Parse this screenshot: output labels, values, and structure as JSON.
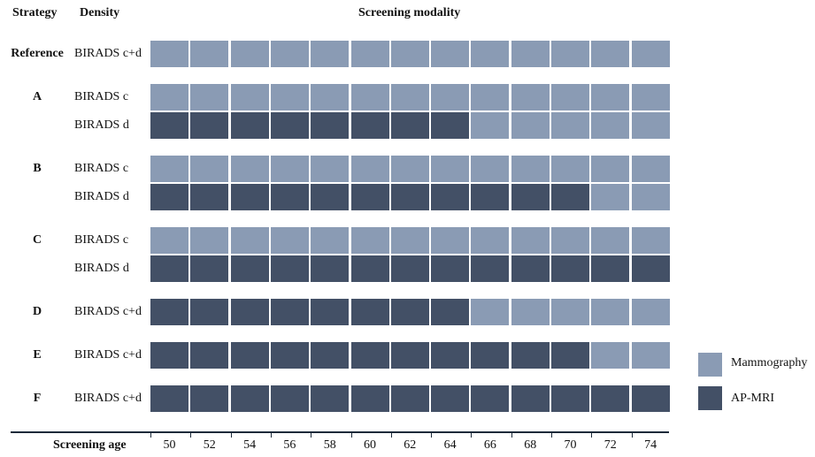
{
  "header": {
    "strategy": "Strategy",
    "density": "Density",
    "modality": "Screening modality"
  },
  "colors": {
    "mammography": "#8a9bb4",
    "ap_mri": "#435066",
    "axis": "#1b2a3a"
  },
  "ages": [
    "50",
    "52",
    "54",
    "56",
    "58",
    "60",
    "62",
    "64",
    "66",
    "68",
    "70",
    "72",
    "74"
  ],
  "rows": [
    {
      "strategy": "Reference",
      "density": "BIRADS c+d",
      "mri_count": 0
    },
    {
      "strategy": "A",
      "density": "BIRADS c",
      "mri_count": 0
    },
    {
      "strategy": "",
      "density": "BIRADS d",
      "mri_count": 8
    },
    {
      "strategy": "B",
      "density": "BIRADS c",
      "mri_count": 0
    },
    {
      "strategy": "",
      "density": "BIRADS d",
      "mri_count": 11
    },
    {
      "strategy": "C",
      "density": "BIRADS c",
      "mri_count": 0
    },
    {
      "strategy": "",
      "density": "BIRADS d",
      "mri_count": 13
    },
    {
      "strategy": "D",
      "density": "BIRADS c+d",
      "mri_count": 8
    },
    {
      "strategy": "E",
      "density": "BIRADS c+d",
      "mri_count": 11
    },
    {
      "strategy": "F",
      "density": "BIRADS c+d",
      "mri_count": 13
    }
  ],
  "x_axis_label": "Screening age",
  "legend": [
    {
      "label": "Mammography",
      "color": "#8a9bb4"
    },
    {
      "label": "AP-MRI",
      "color": "#435066"
    }
  ]
}
